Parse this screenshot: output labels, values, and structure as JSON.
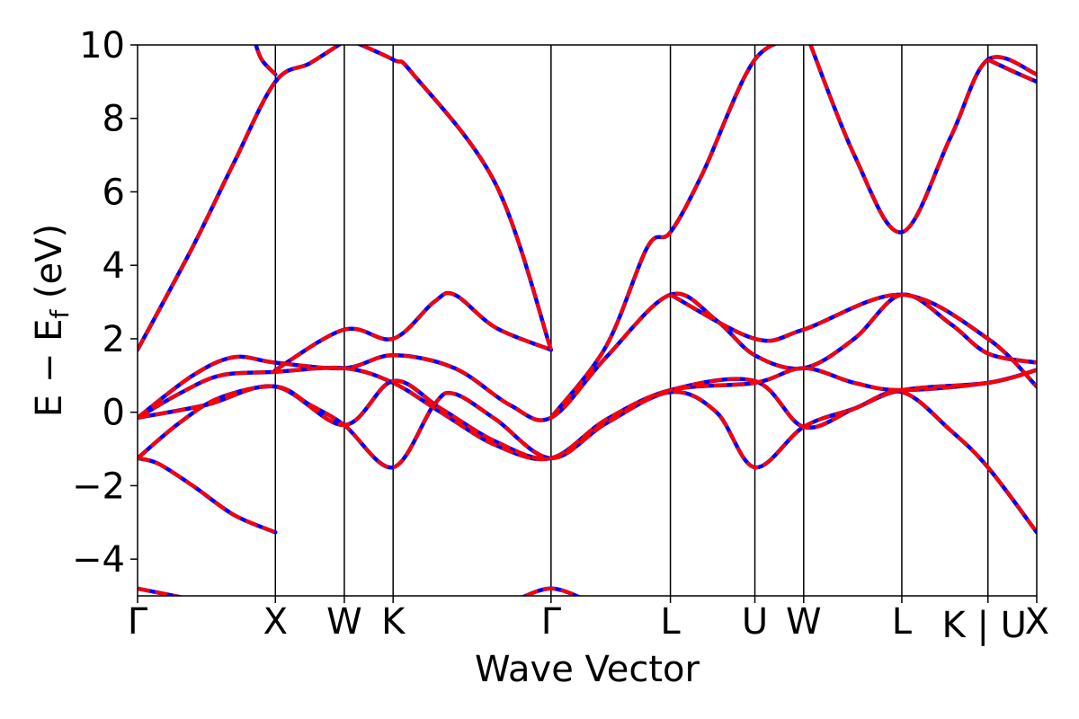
{
  "chart_data": {
    "type": "line",
    "xlabel": "Wave Vector",
    "ylabel_main": "E − E",
    "ylabel_sub": "f",
    "ylabel_unit": " (eV)",
    "ylim": [
      -5,
      10
    ],
    "yticks": [
      -4,
      -2,
      0,
      2,
      4,
      6,
      8,
      10
    ],
    "ytick_labels": [
      "−4",
      "−2",
      "0",
      "2",
      "4",
      "6",
      "8",
      "10"
    ],
    "kpath": [
      "Γ",
      "X",
      "W",
      "K",
      "Γ",
      "L",
      "U",
      "W",
      "L",
      "K | U",
      "X"
    ],
    "kpoint_positions": [
      0.0,
      1.0,
      1.5,
      1.854,
      3.0,
      3.866,
      4.479,
      4.833,
      5.545,
      6.17,
      6.524
    ],
    "series": [
      {
        "color": "#0000ff",
        "dashed": false
      },
      {
        "color": "#ff0000",
        "dashed": true
      }
    ],
    "bands": [
      [
        [
          0,
          -4.8
        ],
        [
          0.4,
          -5.1
        ]
      ],
      [
        [
          0,
          -1.25
        ],
        [
          0.15,
          -1.4
        ],
        [
          0.4,
          -2.0
        ],
        [
          0.7,
          -2.8
        ],
        [
          1.0,
          -3.27
        ]
      ],
      [
        [
          0,
          -1.25
        ],
        [
          0.3,
          -0.3
        ],
        [
          0.6,
          0.4
        ],
        [
          1.0,
          0.7
        ],
        [
          1.25,
          0.2
        ],
        [
          1.5,
          -0.35
        ],
        [
          1.854,
          -1.5
        ],
        [
          2.15,
          0.2
        ],
        [
          2.3,
          0.5
        ],
        [
          2.6,
          -0.2
        ],
        [
          3.0,
          -1.25
        ],
        [
          3.4,
          -0.3
        ],
        [
          3.866,
          0.55
        ],
        [
          4.2,
          0.0
        ],
        [
          4.479,
          -1.5
        ],
        [
          4.833,
          -0.4
        ],
        [
          5.2,
          0.1
        ],
        [
          5.545,
          0.55
        ],
        [
          5.9,
          -0.5
        ],
        [
          6.17,
          -1.5
        ],
        [
          6.524,
          -3.27
        ]
      ],
      [
        [
          0,
          -0.15
        ],
        [
          0.3,
          0.5
        ],
        [
          0.6,
          1.0
        ],
        [
          1.0,
          1.1
        ],
        [
          1.5,
          1.2
        ],
        [
          1.854,
          0.8
        ],
        [
          2.2,
          0.0
        ],
        [
          2.6,
          -0.9
        ],
        [
          3.0,
          -1.25
        ],
        [
          3.4,
          -0.2
        ],
        [
          3.866,
          0.6
        ],
        [
          4.479,
          0.8
        ],
        [
          4.833,
          1.2
        ],
        [
          5.2,
          0.8
        ],
        [
          5.545,
          0.6
        ],
        [
          6.17,
          0.8
        ],
        [
          6.524,
          1.15
        ]
      ],
      [
        [
          0,
          -0.15
        ],
        [
          0.5,
          0.2
        ],
        [
          1.0,
          0.7
        ],
        [
          1.5,
          -0.35
        ],
        [
          1.854,
          0.85
        ],
        [
          2.2,
          0.1
        ],
        [
          2.6,
          -0.8
        ],
        [
          3.0,
          -1.25
        ],
        [
          3.4,
          -0.25
        ],
        [
          3.866,
          0.6
        ],
        [
          4.479,
          0.85
        ],
        [
          4.833,
          -0.4
        ],
        [
          5.2,
          0.1
        ],
        [
          5.545,
          0.6
        ],
        [
          6.17,
          0.8
        ],
        [
          6.524,
          1.15
        ]
      ],
      [
        [
          0,
          -0.15
        ],
        [
          0.4,
          1.0
        ],
        [
          0.7,
          1.5
        ],
        [
          1.0,
          1.35
        ],
        [
          1.5,
          1.2
        ],
        [
          1.854,
          1.55
        ],
        [
          2.3,
          1.2
        ],
        [
          2.7,
          0.2
        ],
        [
          3.0,
          -0.15
        ],
        [
          3.4,
          1.5
        ],
        [
          3.866,
          3.2
        ],
        [
          4.2,
          2.5
        ],
        [
          4.479,
          1.55
        ],
        [
          4.833,
          1.2
        ],
        [
          5.2,
          2.0
        ],
        [
          5.545,
          3.2
        ],
        [
          5.9,
          2.4
        ],
        [
          6.17,
          1.6
        ],
        [
          6.524,
          1.35
        ]
      ],
      [
        [
          0,
          1.7
        ],
        [
          0.4,
          4.5
        ],
        [
          0.7,
          6.8
        ],
        [
          1.0,
          9.0
        ],
        [
          1.25,
          9.5
        ],
        [
          1.5,
          10.1
        ]
      ],
      [
        [
          1.0,
          1.15
        ],
        [
          1.5,
          2.25
        ],
        [
          1.854,
          2.0
        ],
        [
          2.15,
          3.0
        ],
        [
          2.3,
          3.2
        ],
        [
          2.6,
          2.3
        ],
        [
          3.0,
          1.7
        ]
      ],
      [
        [
          3.0,
          -0.15
        ],
        [
          3.4,
          1.8
        ],
        [
          3.7,
          4.5
        ],
        [
          3.866,
          4.9
        ],
        [
          4.1,
          6.5
        ],
        [
          4.479,
          9.6
        ],
        [
          4.833,
          10.2
        ]
      ],
      [
        [
          3.866,
          3.2
        ],
        [
          4.479,
          2.0
        ],
        [
          4.833,
          2.25
        ],
        [
          5.545,
          3.2
        ],
        [
          6.17,
          2.0
        ],
        [
          6.524,
          0.7
        ]
      ],
      [
        [
          3.0,
          1.7
        ],
        [
          2.6,
          6.2
        ],
        [
          2.0,
          9.2
        ],
        [
          1.854,
          9.6
        ],
        [
          1.5,
          10.2
        ]
      ],
      [
        [
          4.833,
          10.5
        ],
        [
          5.2,
          7.0
        ],
        [
          5.545,
          4.9
        ],
        [
          5.9,
          7.5
        ],
        [
          6.17,
          9.6
        ],
        [
          6.524,
          9.2
        ]
      ],
      [
        [
          1.0,
          9.2
        ],
        [
          0.9,
          9.6
        ],
        [
          0.85,
          10.1
        ]
      ],
      [
        [
          6.17,
          9.6
        ],
        [
          6.4,
          9.2
        ],
        [
          6.524,
          9.0
        ]
      ],
      [
        [
          2.7,
          -5.2
        ],
        [
          3.0,
          -4.8
        ],
        [
          3.3,
          -5.2
        ]
      ]
    ]
  }
}
